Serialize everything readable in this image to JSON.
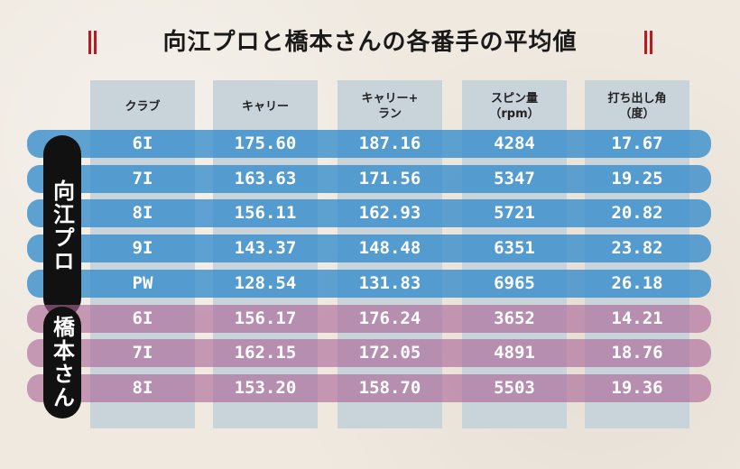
{
  "title": "向江プロと橋本さんの各番手の平均値",
  "colors": {
    "pro_row": "#338ccc",
    "amateur_row": "#aa6496",
    "column_bg": "#c9d3da",
    "title_mark": "#b31c24"
  },
  "headers": [
    "クラブ",
    "キャリー",
    "キャリー+\nラン",
    "スピン量\n（rpm）",
    "打ち出し角\n（度）"
  ],
  "groups": [
    {
      "label": "向江プロ",
      "rows": [
        [
          "6I",
          "175.60",
          "187.16",
          "4284",
          "17.67"
        ],
        [
          "7I",
          "163.63",
          "171.56",
          "5347",
          "19.25"
        ],
        [
          "8I",
          "156.11",
          "162.93",
          "5721",
          "20.82"
        ],
        [
          "9I",
          "143.37",
          "148.48",
          "6351",
          "23.82"
        ],
        [
          "PW",
          "128.54",
          "131.83",
          "6965",
          "26.18"
        ]
      ]
    },
    {
      "label": "橋本さん",
      "rows": [
        [
          "6I",
          "156.17",
          "176.24",
          "3652",
          "14.21"
        ],
        [
          "7I",
          "162.15",
          "172.05",
          "4891",
          "18.76"
        ],
        [
          "8I",
          "153.20",
          "158.70",
          "5503",
          "19.36"
        ]
      ]
    }
  ]
}
